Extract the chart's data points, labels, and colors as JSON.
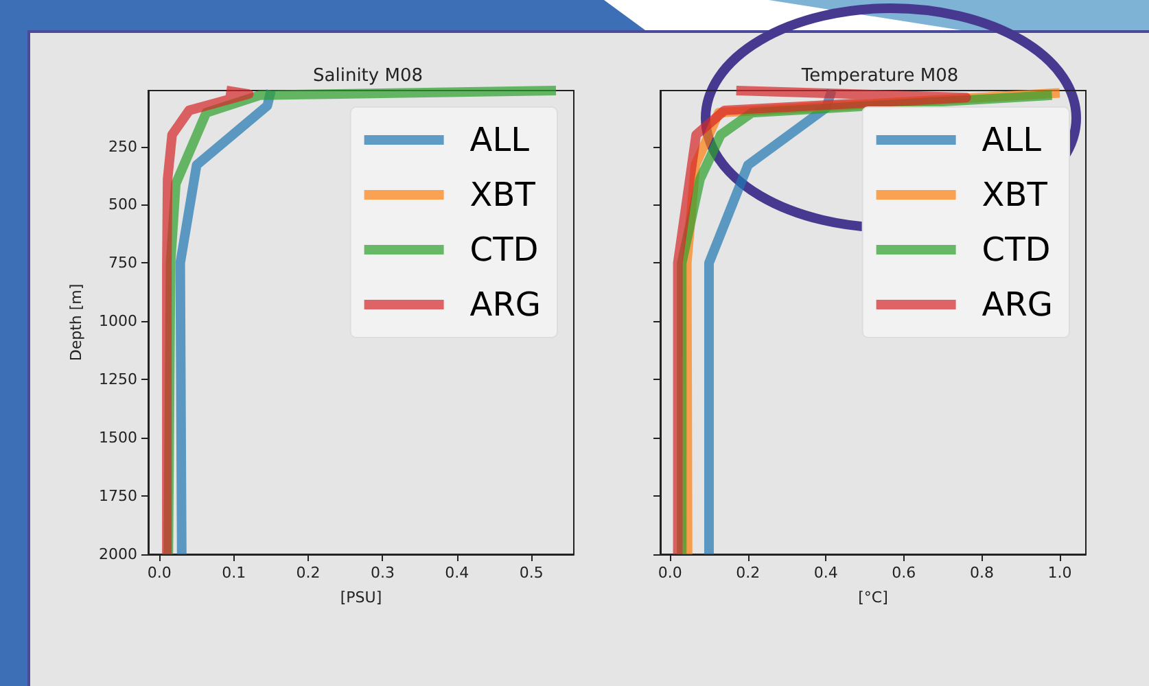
{
  "chart_data": [
    {
      "type": "line",
      "title": "Salinity M08",
      "xlabel": "[PSU]",
      "ylabel": "Depth [m]",
      "legend": "top right",
      "grid": false,
      "marker": "none",
      "line_style": "solid",
      "xlim": [
        -0.015,
        0.557
      ],
      "xticks": [
        {
          "value": 0,
          "label": "0.0"
        },
        {
          "value": 0.1,
          "label": "0.1"
        },
        {
          "value": 0.2,
          "label": "0.2"
        },
        {
          "value": 0.3,
          "label": "0.3"
        },
        {
          "value": 0.4,
          "label": "0.4"
        },
        {
          "value": 0.5,
          "label": "0.5"
        }
      ],
      "ylim": [
        2000,
        10
      ],
      "yticks": [
        250,
        500,
        750,
        1000,
        1250,
        1500,
        1750,
        2000
      ],
      "series": [
        {
          "name": "ALL",
          "color": "#1f77b4",
          "x": [
            0.15,
            0.145,
            0.05,
            0.028,
            0.03
          ],
          "values": [
            10,
            75,
            330,
            750,
            2000
          ]
        },
        {
          "name": "XBT",
          "color": "#ff7f0e"
        },
        {
          "name": "CTD",
          "color": "#2ca02c",
          "x": [
            0.533,
            0.135,
            0.063,
            0.022,
            0.015,
            0.012
          ],
          "values": [
            10,
            30,
            105,
            410,
            750,
            2000
          ]
        },
        {
          "name": "ARG",
          "color": "#d62728",
          "x": [
            0.09,
            0.12,
            0.04,
            0.017,
            0.011,
            0.01,
            0.01
          ],
          "values": [
            10,
            25,
            95,
            200,
            390,
            750,
            2000
          ]
        }
      ]
    },
    {
      "type": "line",
      "title": "Temperature M08",
      "xlabel": "[°C]",
      "legend": "top right",
      "grid": false,
      "marker": "none",
      "line_style": "solid",
      "tick_labels": "x",
      "xlim": [
        -0.025,
        1.067
      ],
      "xticks": [
        {
          "value": 0,
          "label": "0.0"
        },
        {
          "value": 0.2,
          "label": "0.2"
        },
        {
          "value": 0.4,
          "label": "0.4"
        },
        {
          "value": 0.6,
          "label": "0.6"
        },
        {
          "value": 0.8,
          "label": "0.8"
        },
        {
          "value": 1,
          "label": "1.0"
        }
      ],
      "ylim": [
        2000,
        10
      ],
      "yticks": [
        250,
        500,
        750,
        1000,
        1250,
        1500,
        1750,
        2000
      ],
      "series": [
        {
          "name": "ALL",
          "color": "#1f77b4",
          "x": [
            0.415,
            0.4,
            0.2,
            0.1,
            0.1
          ],
          "values": [
            10,
            85,
            330,
            750,
            2000
          ]
        },
        {
          "name": "XBT",
          "color": "#ff7f0e",
          "x": [
            1.0,
            0.125,
            0.065,
            0.043,
            0.045
          ],
          "values": [
            20,
            105,
            330,
            750,
            2000
          ]
        },
        {
          "name": "CTD",
          "color": "#2ca02c",
          "x": [
            0.98,
            0.21,
            0.13,
            0.077,
            0.03,
            0.03
          ],
          "values": [
            30,
            105,
            200,
            390,
            750,
            2000
          ]
        },
        {
          "name": "ARG",
          "color": "#d62728",
          "x": [
            0.17,
            0.76,
            0.14,
            0.067,
            0.02,
            0.02
          ],
          "values": [
            10,
            40,
            95,
            200,
            750,
            2000
          ]
        }
      ]
    }
  ]
}
